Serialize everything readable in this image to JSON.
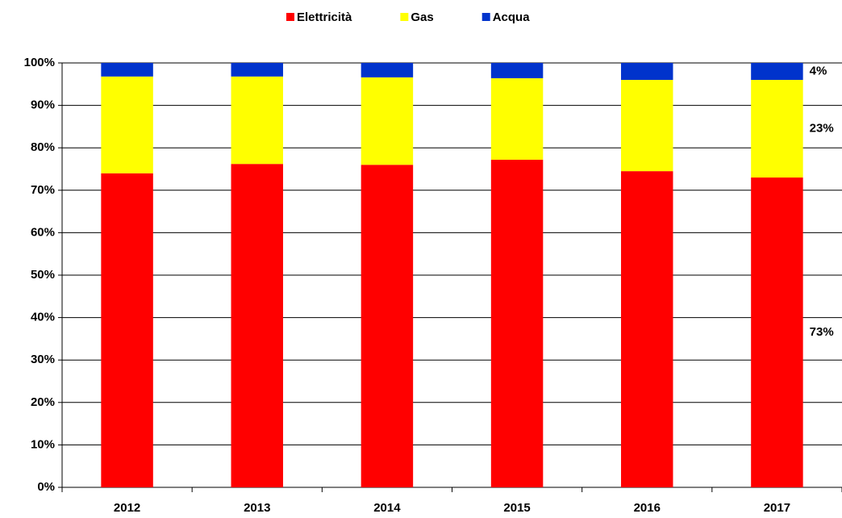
{
  "chart_data": {
    "type": "stacked_bar",
    "categories": [
      "2012",
      "2013",
      "2014",
      "2015",
      "2016",
      "2017"
    ],
    "series": [
      {
        "name": "Elettricità",
        "color": "#ff0000",
        "values": [
          74.0,
          76.2,
          76.0,
          77.2,
          74.5,
          73.0
        ],
        "value_labels": [
          null,
          null,
          null,
          null,
          null,
          "73%"
        ]
      },
      {
        "name": "Gas",
        "color": "#ffff00",
        "values": [
          22.8,
          20.6,
          20.6,
          19.2,
          21.5,
          23.0
        ],
        "value_labels": [
          null,
          null,
          null,
          null,
          null,
          "23%"
        ]
      },
      {
        "name": "Acqua",
        "color": "#0033cc",
        "values": [
          3.2,
          3.2,
          3.4,
          3.6,
          4.0,
          4.0
        ],
        "value_labels": [
          null,
          null,
          null,
          null,
          null,
          "4%"
        ]
      }
    ],
    "ylim": [
      0,
      100
    ],
    "yticks": [
      {
        "value": 0,
        "label": "0%"
      },
      {
        "value": 10,
        "label": "10%"
      },
      {
        "value": 20,
        "label": "20%"
      },
      {
        "value": 30,
        "label": "30%"
      },
      {
        "value": 40,
        "label": "40%"
      },
      {
        "value": 50,
        "label": "50%"
      },
      {
        "value": 60,
        "label": "60%"
      },
      {
        "value": 70,
        "label": "70%"
      },
      {
        "value": 80,
        "label": "80%"
      },
      {
        "value": 90,
        "label": "90%"
      },
      {
        "value": 100,
        "label": "100%"
      }
    ],
    "grid": true,
    "legend": "top"
  }
}
